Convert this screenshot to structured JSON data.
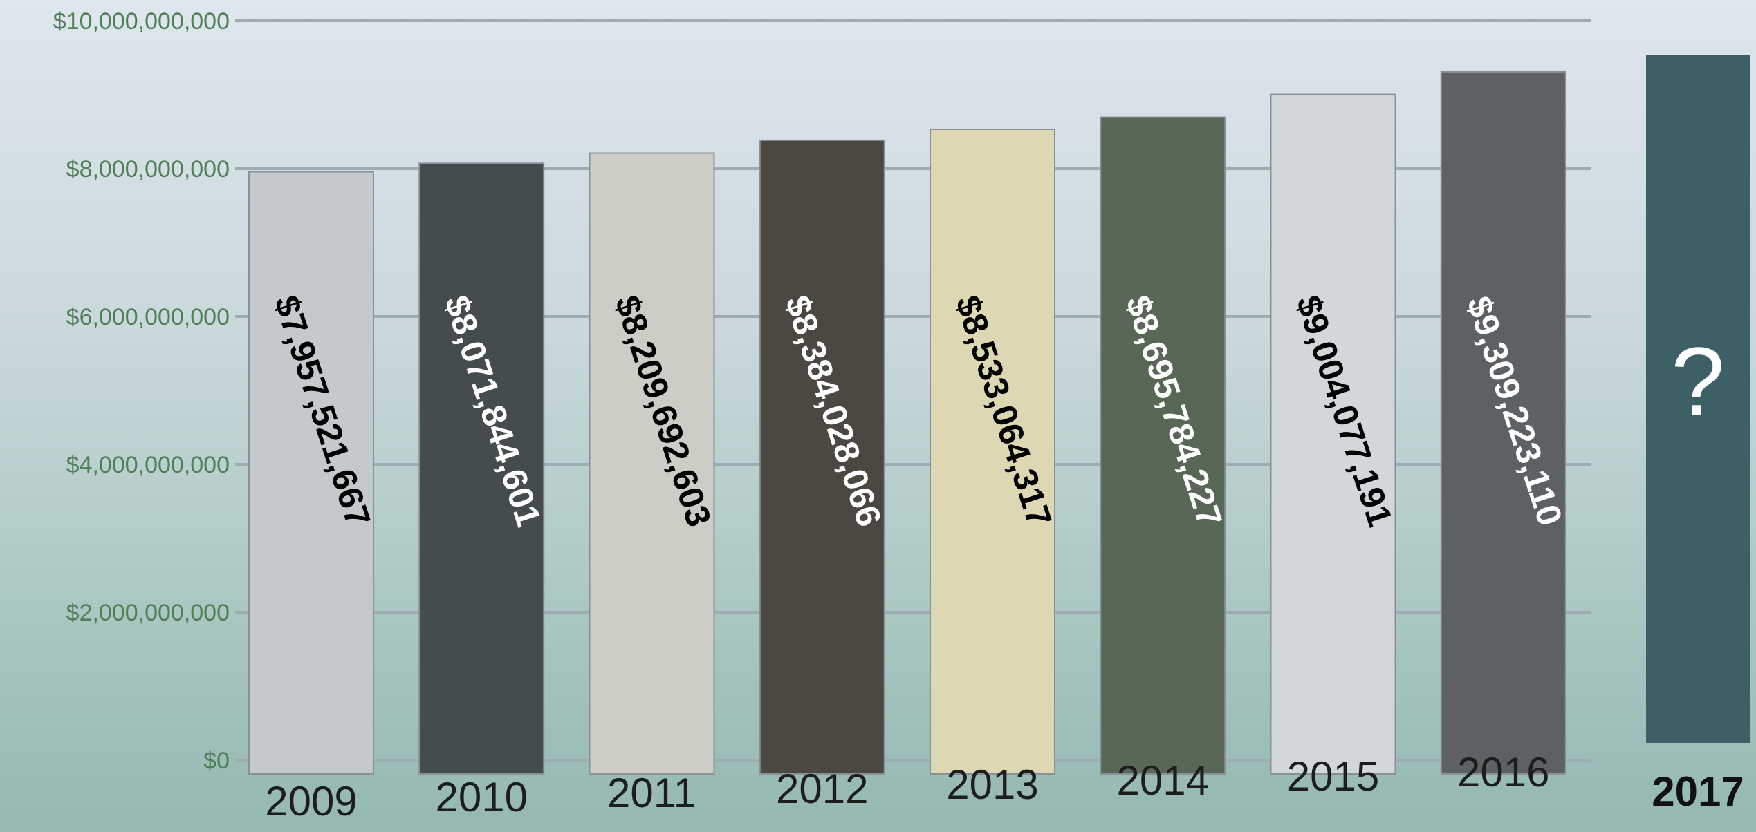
{
  "chart_data": {
    "type": "bar",
    "categories": [
      "2009",
      "2010",
      "2011",
      "2012",
      "2013",
      "2014",
      "2015",
      "2016",
      "2017"
    ],
    "values": [
      7957521667,
      8071844601,
      8209692603,
      8384028066,
      8533064317,
      8695784227,
      9004077191,
      9309223110,
      null
    ],
    "value_labels": [
      "$7,957,521,667",
      "$8,071,844,601",
      "$8,209,692,603",
      "$8,384,028,066",
      "$8,533,064,317",
      "$8,695,784,227",
      "$9,004,077,191",
      "$9,309,223,110",
      "?"
    ],
    "y_ticks": [
      "$0",
      "$2,000,000,000",
      "$4,000,000,000",
      "$6,000,000,000",
      "$8,000,000,000",
      "$10,000,000,000"
    ],
    "ylim": [
      0,
      10000000000
    ],
    "grid": true,
    "title": "",
    "xlabel": "",
    "ylabel": "",
    "bar_colors": [
      "#c4c9cc",
      "#454c4d",
      "#cccdc4",
      "#4a4841",
      "#ddd7b3",
      "#596757",
      "#d2d7d9",
      "#5d6163",
      "#3d5f66"
    ],
    "label_colors": [
      "#000000",
      "#ffffff",
      "#000000",
      "#ffffff",
      "#000000",
      "#ffffff",
      "#000000",
      "#ffffff",
      "#ffffff"
    ],
    "tick_color": "#4f7f55",
    "highlight_category": "2017"
  }
}
